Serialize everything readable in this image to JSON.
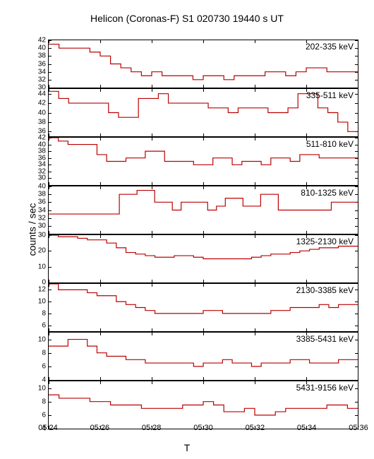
{
  "title": "Helicon (Coronas-F) S1 020730 19440 s UT",
  "ylabel": "counts / sec",
  "xlabel": "T",
  "background_color": "#ffffff",
  "line_color": "#bb0000",
  "line_width": 1.2,
  "axis_color": "#000000",
  "text_color": "#000000",
  "title_fontsize": 14,
  "label_fontsize": 14,
  "tick_fontsize": 10,
  "panel_label_fontsize": 12,
  "chart_type": "step",
  "x_axis": {
    "min": 0,
    "max": 12,
    "tick_positions": [
      0,
      2,
      4,
      6,
      8,
      10,
      12
    ],
    "tick_labels": [
      "05:24",
      "05:26",
      "05:28",
      "05:30",
      "05:32",
      "05:34",
      "05:36"
    ]
  },
  "panels": [
    {
      "label": "202-335 keV",
      "ylim": [
        30,
        42
      ],
      "yticks": [
        30,
        32,
        34,
        36,
        38,
        40,
        42
      ],
      "values": [
        41,
        40,
        40,
        40,
        39,
        38,
        36,
        35,
        34,
        33,
        34,
        33,
        33,
        33,
        32,
        33,
        33,
        32,
        33,
        33,
        33,
        34,
        34,
        33,
        34,
        35,
        35,
        34,
        34,
        34
      ]
    },
    {
      "label": "335-511 keV",
      "ylim": [
        35,
        45
      ],
      "yticks": [
        36,
        38,
        40,
        42,
        44
      ],
      "values": [
        44.5,
        43,
        42,
        42,
        42,
        42,
        40,
        39,
        39,
        43,
        43,
        44,
        42,
        42,
        42,
        42,
        41,
        41,
        40,
        41,
        41,
        41,
        40,
        40,
        41,
        44,
        44,
        41,
        40,
        38,
        36
      ]
    },
    {
      "label": "511-810 keV",
      "ylim": [
        28,
        42
      ],
      "yticks": [
        30,
        32,
        34,
        36,
        38,
        40,
        42
      ],
      "values": [
        42,
        41,
        40,
        40,
        40,
        37,
        35,
        35,
        36,
        36,
        38,
        38,
        35,
        35,
        35,
        34,
        34,
        36,
        36,
        34,
        35,
        35,
        34,
        36,
        36,
        35,
        37,
        37,
        36,
        36,
        36,
        36
      ]
    },
    {
      "label": "810-1325 keV",
      "ylim": [
        28,
        40
      ],
      "yticks": [
        30,
        32,
        34,
        36,
        38,
        40
      ],
      "values": [
        33,
        33,
        33,
        33,
        33,
        33,
        33,
        33,
        38,
        38,
        39,
        39,
        36,
        36,
        34,
        36,
        36,
        36,
        34,
        35,
        37,
        37,
        35,
        35,
        38,
        38,
        34,
        34,
        34,
        34,
        34,
        34,
        36,
        36,
        36
      ]
    },
    {
      "label": "1325-2130 keV",
      "ylim": [
        0,
        30
      ],
      "yticks": [
        0,
        10,
        20,
        30
      ],
      "values": [
        30,
        29,
        29,
        28,
        27,
        27,
        25,
        22,
        19,
        18,
        17,
        16,
        16,
        17,
        17,
        16,
        15,
        15,
        15,
        15,
        15,
        16,
        17,
        18,
        18,
        19,
        20,
        21,
        22,
        22,
        23,
        23
      ]
    },
    {
      "label": "2130-3385 keV",
      "ylim": [
        5,
        13
      ],
      "yticks": [
        6,
        8,
        10,
        12
      ],
      "values": [
        13,
        12,
        12,
        12,
        11.5,
        11,
        11,
        10,
        9.5,
        9,
        8.5,
        8,
        8,
        8,
        8,
        8,
        8.5,
        8.5,
        8,
        8,
        8,
        8,
        8,
        8.5,
        8.5,
        9,
        9,
        9,
        9.5,
        9,
        9.5,
        9.5
      ]
    },
    {
      "label": "3385-5431 keV",
      "ylim": [
        4,
        11
      ],
      "yticks": [
        4,
        6,
        8,
        10
      ],
      "values": [
        9,
        9,
        10,
        10,
        9,
        8,
        7.5,
        7.5,
        7,
        7,
        6.5,
        6.5,
        6.5,
        6.5,
        6.5,
        6,
        6.5,
        6.5,
        7,
        6.5,
        6.5,
        6,
        6.5,
        6.5,
        6.5,
        7,
        7,
        6.5,
        6.5,
        6.5,
        7,
        7
      ]
    },
    {
      "label": "5431-9156 keV",
      "ylim": [
        4,
        11
      ],
      "yticks": [
        4,
        6,
        8,
        10
      ],
      "values": [
        9,
        8.5,
        8.5,
        8.5,
        8,
        8,
        7.5,
        7.5,
        7.5,
        7,
        7,
        7,
        7,
        7.5,
        7.5,
        8,
        7.5,
        6.5,
        6.5,
        7,
        6,
        6,
        6.5,
        7,
        7,
        7,
        7,
        7.5,
        7.5,
        7
      ]
    }
  ]
}
